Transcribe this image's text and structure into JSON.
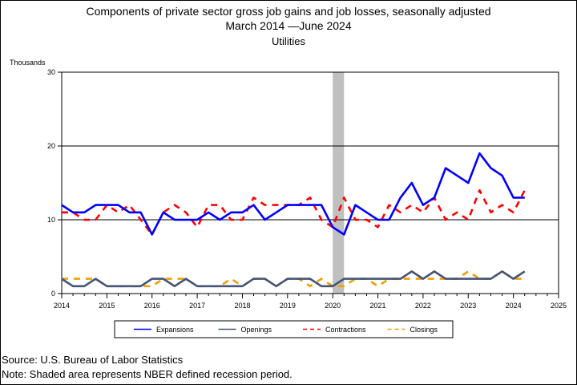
{
  "chart_title": {
    "line1": "Components of private sector gross job gains and job losses, seasonally adjusted",
    "line2": "March 2014 —June 2024",
    "line3": "Utilities"
  },
  "units_label": "Thousands",
  "footer": {
    "source": "Source: U.S. Bureau of Labor Statistics",
    "note": "Note: Shaded area represents NBER defined recession period."
  },
  "chart_data": {
    "type": "line",
    "title": "Components of private sector gross job gains and job losses, seasonally adjusted",
    "subtitle": "March 2014 —June 2024",
    "subtitle2": "Utilities",
    "ylabel": "Thousands",
    "xlim": [
      2014,
      2025
    ],
    "ylim": [
      0,
      30
    ],
    "x_ticks": [
      "2014",
      "2015",
      "2016",
      "2017",
      "2018",
      "2019",
      "2020",
      "2021",
      "2022",
      "2023",
      "2024",
      "2025"
    ],
    "y_ticks": [
      "0",
      "10",
      "20",
      "30"
    ],
    "grid": "horizontal major lines",
    "legend_position": "bottom",
    "recession_shading": {
      "start": "2020Q1",
      "end": "2020Q2",
      "color": "#c0c0c0"
    },
    "x": [
      "2014Q1",
      "2014Q2",
      "2014Q3",
      "2014Q4",
      "2015Q1",
      "2015Q2",
      "2015Q3",
      "2015Q4",
      "2016Q1",
      "2016Q2",
      "2016Q3",
      "2016Q4",
      "2017Q1",
      "2017Q2",
      "2017Q3",
      "2017Q4",
      "2018Q1",
      "2018Q2",
      "2018Q3",
      "2018Q4",
      "2019Q1",
      "2019Q2",
      "2019Q3",
      "2019Q4",
      "2020Q1",
      "2020Q2",
      "2020Q3",
      "2020Q4",
      "2021Q1",
      "2021Q2",
      "2021Q3",
      "2021Q4",
      "2022Q1",
      "2022Q2",
      "2022Q3",
      "2022Q4",
      "2023Q1",
      "2023Q2",
      "2023Q3",
      "2023Q4",
      "2024Q1",
      "2024Q2"
    ],
    "series": [
      {
        "name": "Expansions",
        "color": "#0000ff",
        "style": "solid",
        "values": [
          12,
          11,
          11,
          12,
          12,
          12,
          11,
          11,
          8,
          11,
          10,
          10,
          10,
          11,
          10,
          11,
          11,
          12,
          10,
          11,
          12,
          12,
          12,
          12,
          9,
          8,
          12,
          11,
          10,
          10,
          13,
          15,
          12,
          13,
          17,
          16,
          15,
          19,
          17,
          16,
          13,
          13
        ]
      },
      {
        "name": "Openings",
        "color": "#445577",
        "style": "solid",
        "values": [
          2,
          1,
          1,
          2,
          1,
          1,
          1,
          1,
          2,
          2,
          1,
          2,
          1,
          1,
          1,
          1,
          1,
          2,
          2,
          1,
          2,
          2,
          2,
          1,
          1,
          2,
          2,
          2,
          2,
          2,
          2,
          3,
          2,
          3,
          2,
          2,
          2,
          2,
          2,
          3,
          2,
          3
        ]
      },
      {
        "name": "Contractions",
        "color": "#ff0000",
        "style": "dashed",
        "values": [
          11,
          11,
          10,
          10,
          12,
          11,
          12,
          10,
          8,
          11,
          12,
          11,
          9,
          12,
          12,
          10,
          10,
          13,
          12,
          12,
          12,
          12,
          13,
          10,
          9,
          13,
          10,
          10,
          9,
          12,
          11,
          12,
          11,
          13,
          10,
          11,
          10,
          14,
          11,
          12,
          11,
          14
        ]
      },
      {
        "name": "Closings",
        "color": "#f0a000",
        "style": "dashed",
        "values": [
          2,
          2,
          2,
          2,
          1,
          1,
          1,
          1,
          1,
          2,
          2,
          2,
          1,
          1,
          1,
          2,
          1,
          2,
          2,
          1,
          2,
          2,
          1,
          2,
          1,
          1,
          2,
          2,
          1,
          2,
          2,
          2,
          2,
          2,
          2,
          2,
          3,
          2,
          2,
          3,
          2,
          2
        ]
      }
    ]
  }
}
